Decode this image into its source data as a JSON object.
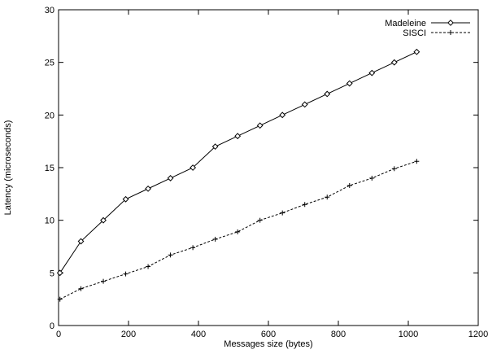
{
  "chart_data": {
    "type": "line",
    "title": "",
    "xlabel": "Messages size (bytes)",
    "ylabel": "Latency (microseconds)",
    "xlim": [
      0,
      1200
    ],
    "ylim": [
      0,
      30
    ],
    "x_ticks": [
      0,
      200,
      400,
      600,
      800,
      1000,
      1200
    ],
    "y_ticks": [
      0,
      5,
      10,
      15,
      20,
      25,
      30
    ],
    "grid": false,
    "legend_position": "top-right",
    "series": [
      {
        "name": "Madeleine",
        "marker": "diamond",
        "line_style": "solid",
        "color": "#000000",
        "x": [
          4,
          64,
          128,
          192,
          256,
          320,
          384,
          448,
          512,
          576,
          640,
          704,
          768,
          832,
          896,
          960,
          1024
        ],
        "y": [
          5,
          8,
          10,
          12,
          13,
          14,
          15,
          17,
          18,
          19,
          20,
          21,
          22,
          23,
          24,
          25,
          26
        ]
      },
      {
        "name": "SISCI",
        "marker": "plus",
        "line_style": "dashed",
        "color": "#000000",
        "x": [
          4,
          64,
          128,
          192,
          256,
          320,
          384,
          448,
          512,
          576,
          640,
          704,
          768,
          832,
          896,
          960,
          1024
        ],
        "y": [
          2.5,
          3.5,
          4.2,
          4.9,
          5.6,
          6.7,
          7.4,
          8.2,
          8.9,
          10.0,
          10.7,
          11.5,
          12.2,
          13.3,
          14.0,
          14.9,
          15.6
        ]
      }
    ]
  }
}
